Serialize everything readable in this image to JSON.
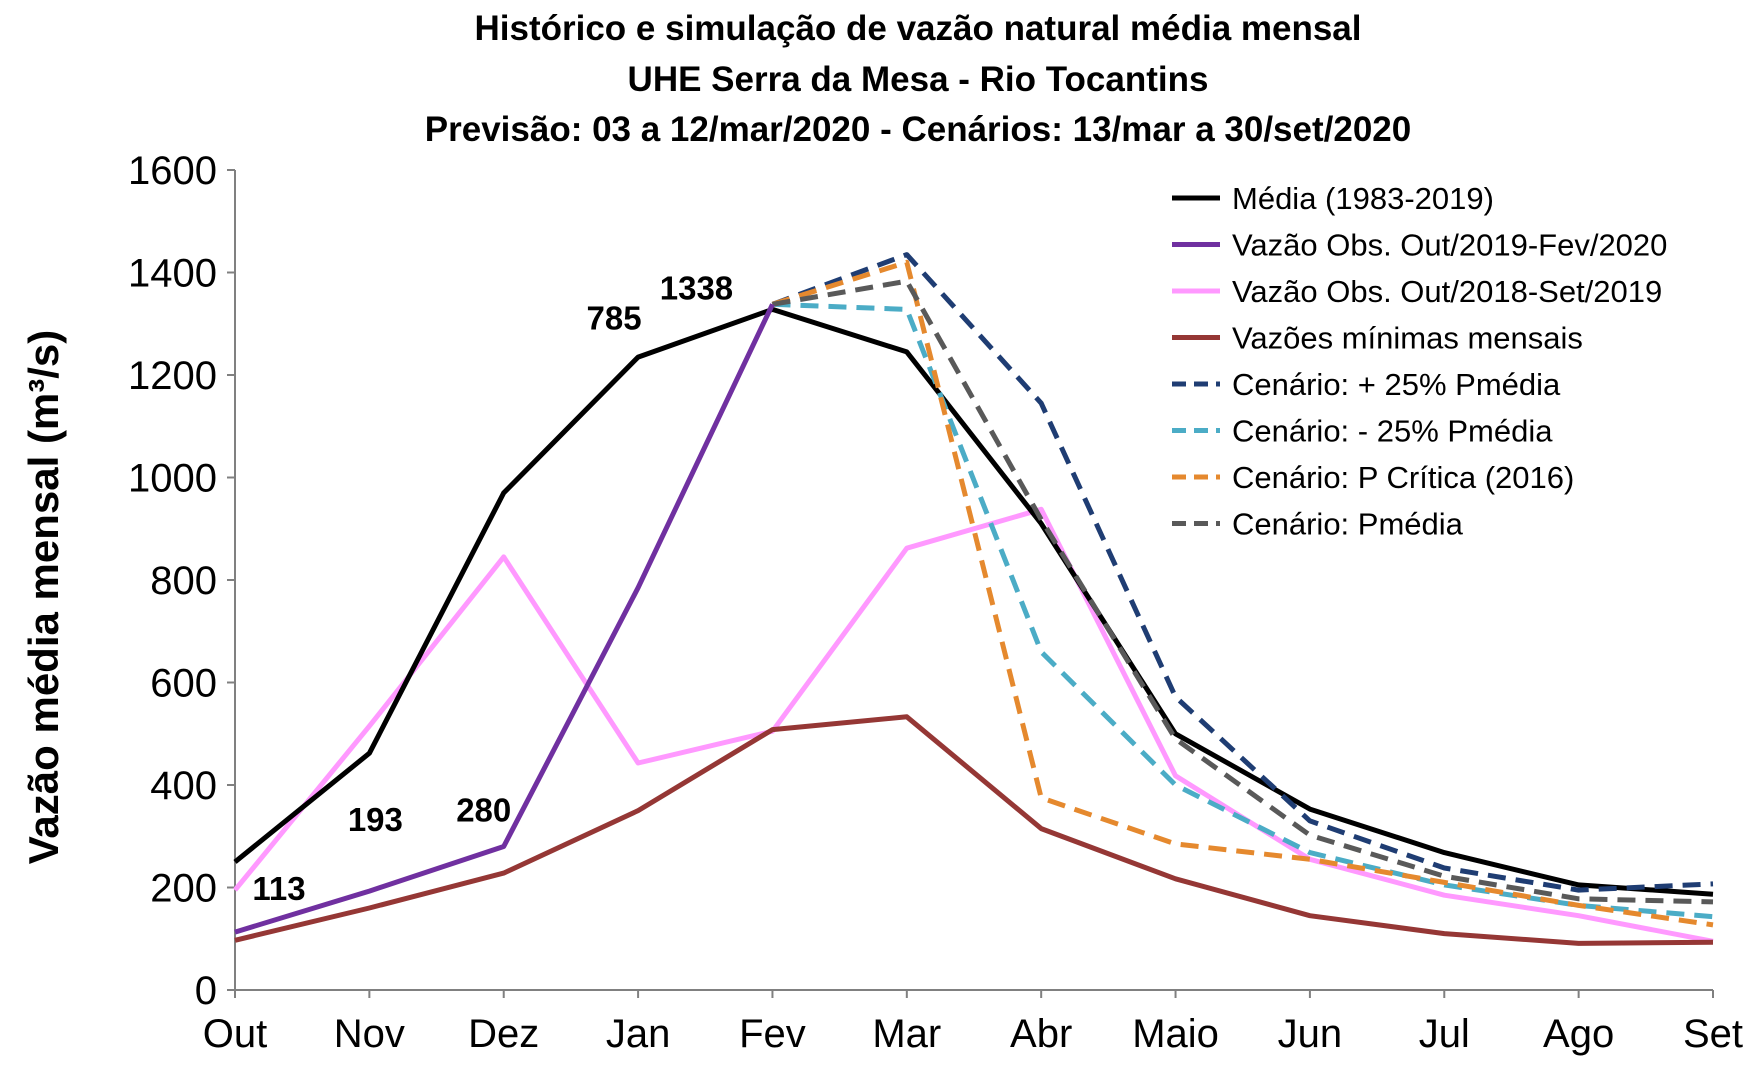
{
  "chart_data": {
    "type": "line",
    "title_lines": [
      "Histórico e simulação de vazão natural média mensal",
      "UHE Serra da Mesa - Rio Tocantins",
      "Previsão: 03 a 12/mar/2020 - Cenários: 13/mar a 30/set/2020"
    ],
    "ylabel": "Vazão média mensal (m³/s)",
    "xlabel": "",
    "categories": [
      "Out",
      "Nov",
      "Dez",
      "Jan",
      "Fev",
      "Mar",
      "Abr",
      "Maio",
      "Jun",
      "Jul",
      "Ago",
      "Set"
    ],
    "ylim": [
      0,
      1600
    ],
    "yticks": [
      0,
      200,
      400,
      600,
      800,
      1000,
      1200,
      1400,
      1600
    ],
    "grid": false,
    "legend_position": "top-right",
    "series": [
      {
        "name": "Média (1983-2019)",
        "color": "#000000",
        "dash": "solid",
        "values": [
          250,
          462,
          970,
          1235,
          1328,
          1245,
          910,
          500,
          353,
          268,
          205,
          187
        ]
      },
      {
        "name": "Vazão Obs. Out/2019-Fev/2020",
        "color": "#7030A0",
        "dash": "solid",
        "values": [
          113,
          193,
          280,
          785,
          1338,
          null,
          null,
          null,
          null,
          null,
          null,
          null
        ]
      },
      {
        "name": "Vazão Obs. Out/2018-Set/2019",
        "color": "#FF99FF",
        "dash": "solid",
        "values": [
          195,
          515,
          845,
          443,
          505,
          862,
          938,
          418,
          255,
          185,
          145,
          95
        ]
      },
      {
        "name": "Vazões mínimas mensais",
        "color": "#953735",
        "dash": "solid",
        "values": [
          97,
          160,
          228,
          350,
          508,
          533,
          315,
          217,
          145,
          110,
          91,
          93
        ]
      },
      {
        "name": "Cenário: + 25% Pmédia",
        "color": "#1F3D73",
        "dash": "dashed",
        "values": [
          null,
          null,
          null,
          null,
          1338,
          1435,
          1145,
          572,
          330,
          238,
          195,
          207
        ]
      },
      {
        "name": "Cenário: - 25% Pmédia",
        "color": "#4BACC6",
        "dash": "dashed",
        "values": [
          null,
          null,
          null,
          null,
          1338,
          1328,
          660,
          400,
          268,
          205,
          165,
          143
        ]
      },
      {
        "name": "Cenário: P Crítica (2016)",
        "color": "#E5892E",
        "dash": "dashed",
        "values": [
          null,
          null,
          null,
          null,
          1338,
          1420,
          375,
          285,
          255,
          210,
          165,
          127
        ]
      },
      {
        "name": "Cenário: Pmédia",
        "color": "#595959",
        "dash": "dashed",
        "values": [
          null,
          null,
          null,
          null,
          1338,
          1383,
          918,
          490,
          302,
          222,
          178,
          172
        ]
      }
    ],
    "annotations": [
      {
        "text": "113",
        "x": "Out",
        "y": 113
      },
      {
        "text": "193",
        "x": "Nov",
        "y": 193
      },
      {
        "text": "280",
        "x": "Dez",
        "y": 280
      },
      {
        "text": "785",
        "x": "Jan",
        "y": 785
      },
      {
        "text": "1338",
        "x": "Fev",
        "y": 1338
      }
    ]
  }
}
